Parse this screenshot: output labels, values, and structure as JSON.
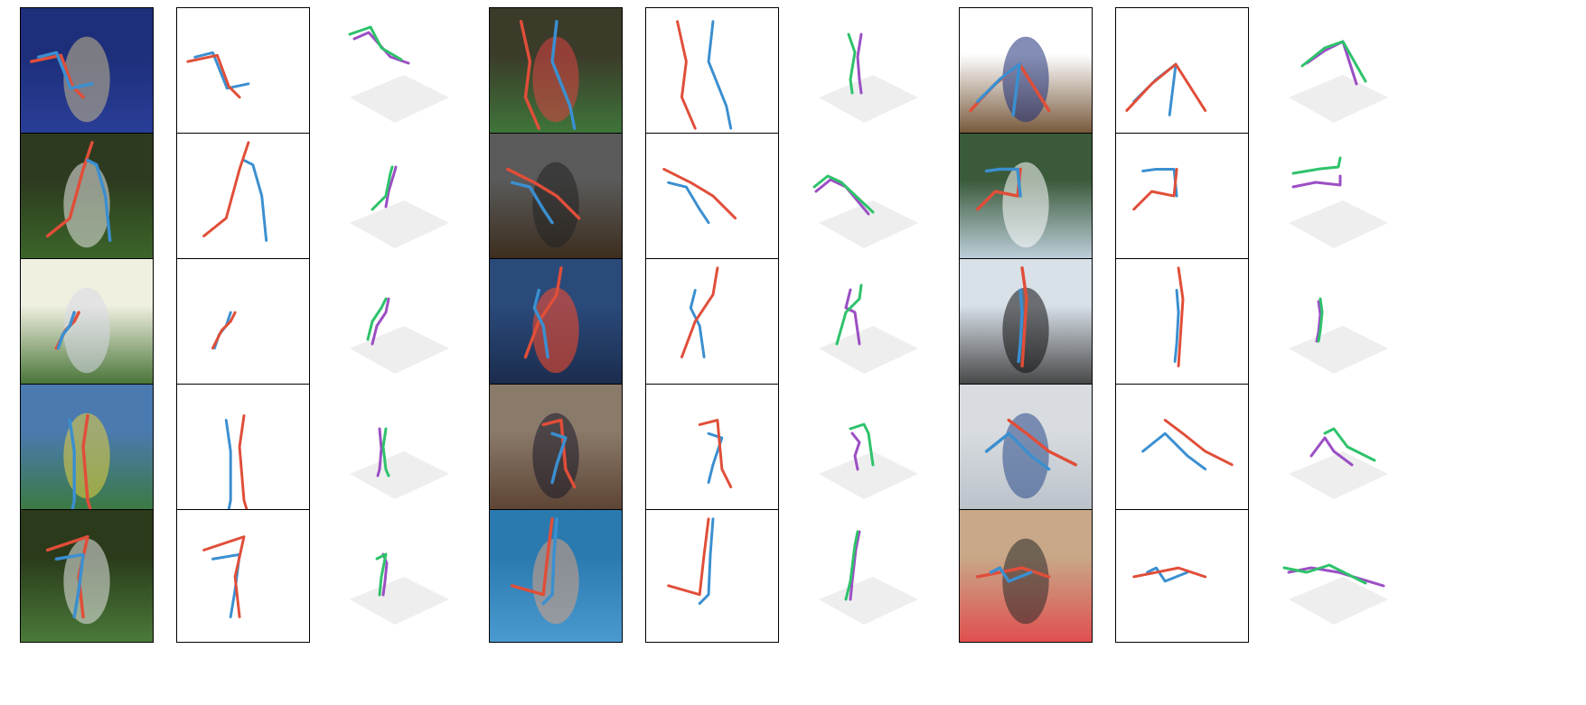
{
  "colors": {
    "right_limb": "#e04e39",
    "left_limb": "#3b8fd0",
    "left_limb_3d": "#2ec26b",
    "right_limb_3d": "#9b4fc4",
    "floor": "#eeeeee",
    "frame": "#000000"
  },
  "rows": [
    {
      "groups": [
        {
          "photo": {
            "top": "#1d2f7a",
            "bottom": "#2a3f9a",
            "accent": "#c9b98a"
          },
          "skeleton_2d": [
            [
              12,
              60,
              45,
              53,
              58,
              88,
              70,
              100
            ],
            [
              20,
              55,
              40,
              50,
              56,
              90,
              80,
              85
            ]
          ],
          "skeleton_3d": [
            [
              15,
              30,
              38,
              22,
              50,
              45,
              72,
              58
            ],
            [
              20,
              35,
              36,
              28,
              60,
              55,
              80,
              62
            ]
          ]
        },
        {
          "photo": {
            "top": "#3b3b2a",
            "bottom": "#3f7a3b",
            "accent": "#d44"
          },
          "skeleton_2d": [
            [
              35,
              15,
              45,
              60,
              40,
              100,
              55,
              135
            ],
            [
              75,
              15,
              70,
              60,
              90,
              110,
              95,
              135
            ]
          ],
          "skeleton_3d": [
            [
              48,
              30,
              55,
              50,
              50,
              80,
              52,
              95
            ],
            [
              62,
              30,
              58,
              55,
              60,
              80,
              62,
              95
            ]
          ]
        },
        {
          "photo": {
            "top": "#ffffff",
            "bottom": "#6b4a2a",
            "accent": "#1d2f7a"
          },
          "skeleton_2d": [
            [
              12,
              115,
              40,
              85,
              67,
              63,
              100,
              115
            ],
            [
              20,
              105,
              45,
              80,
              67,
              63,
              60,
              120
            ]
          ],
          "skeleton_3d": [
            [
              30,
              65,
              55,
              45,
              75,
              38,
              100,
              82
            ],
            [
              35,
              62,
              55,
              48,
              75,
              38,
              90,
              85
            ]
          ]
        }
      ]
    },
    {
      "groups": [
        {
          "photo": {
            "top": "#2d3a1f",
            "bottom": "#3d6a2a",
            "accent": "#e8e8e8"
          },
          "skeleton_2d": [
            [
              30,
              115,
              55,
              95,
              70,
              40,
              80,
              10
            ],
            [
              100,
              120,
              95,
              70,
              85,
              35,
              75,
              30
            ]
          ],
          "skeleton_3d": [
            [
              40,
              85,
              55,
              70,
              60,
              45,
              62,
              38
            ],
            [
              55,
              82,
              58,
              65,
              65,
              42,
              66,
              38
            ]
          ]
        },
        {
          "photo": {
            "top": "#5a5a5a",
            "bottom": "#3a2a1a",
            "accent": "#222"
          },
          "skeleton_2d": [
            [
              20,
              40,
              50,
              55,
              75,
              70,
              100,
              95
            ],
            [
              25,
              55,
              45,
              60,
              60,
              85,
              70,
              100
            ]
          ],
          "skeleton_3d": [
            [
              10,
              60,
              25,
              48,
              40,
              55,
              75,
              88
            ],
            [
              12,
              65,
              28,
              52,
              45,
              60,
              70,
              90
            ]
          ]
        },
        {
          "photo": {
            "top": "#3a5a3a",
            "bottom": "#c8d8e8",
            "accent": "#ffffff"
          },
          "skeleton_2d": [
            [
              20,
              85,
              40,
              65,
              65,
              70,
              68,
              40
            ],
            [
              30,
              42,
              45,
              40,
              65,
              40,
              68,
              70
            ]
          ],
          "skeleton_3d": [
            [
              20,
              45,
              50,
              40,
              70,
              38,
              72,
              28
            ],
            [
              20,
              60,
              45,
              55,
              72,
              58,
              72,
              48
            ]
          ]
        }
      ]
    },
    {
      "groups": [
        {
          "photo": {
            "top": "#f0f0e0",
            "bottom": "#3a6a2a",
            "accent": "#d8d8e8"
          },
          "skeleton_2d": [
            [
              40,
              100,
              50,
              80,
              60,
              70,
              65,
              60
            ],
            [
              42,
              100,
              47,
              85,
              55,
              75,
              60,
              60
            ]
          ],
          "skeleton_3d": [
            [
              35,
              90,
              40,
              70,
              50,
              55,
              55,
              45
            ],
            [
              40,
              95,
              45,
              75,
              55,
              60,
              58,
              45
            ]
          ]
        },
        {
          "photo": {
            "top": "#2a4a7a",
            "bottom": "#1a2a4a",
            "accent": "#ff4a2a"
          },
          "skeleton_2d": [
            [
              40,
              110,
              55,
              70,
              75,
              40,
              80,
              10
            ],
            [
              65,
              110,
              60,
              75,
              50,
              55,
              55,
              35
            ]
          ],
          "skeleton_3d": [
            [
              35,
              95,
              45,
              60,
              60,
              45,
              62,
              30
            ],
            [
              60,
              95,
              55,
              60,
              45,
              55,
              50,
              35
            ]
          ]
        },
        {
          "photo": {
            "top": "#d8e0e8",
            "bottom": "#3a3a3a",
            "accent": "#111"
          },
          "skeleton_2d": [
            [
              70,
              10,
              75,
              45,
              72,
              90,
              70,
              120
            ],
            [
              68,
              35,
              70,
              60,
              68,
              95,
              66,
              115
            ]
          ],
          "skeleton_3d": [
            [
              50,
              45,
              52,
              60,
              50,
              80,
              48,
              92
            ],
            [
              48,
              48,
              50,
              62,
              48,
              82,
              46,
              92
            ]
          ]
        }
      ]
    },
    {
      "groups": [
        {
          "photo": {
            "top": "#4a7ab0",
            "bottom": "#3a7a3a",
            "accent": "#e8d040"
          },
          "skeleton_2d": [
            [
              75,
              35,
              70,
              70,
              75,
              130,
              78,
              140
            ],
            [
              55,
              40,
              60,
              75,
              60,
              130,
              58,
              140
            ]
          ],
          "skeleton_3d": [
            [
              55,
              50,
              52,
              70,
              55,
              95,
              58,
              102
            ],
            [
              48,
              50,
              50,
              72,
              48,
              95,
              46,
              102
            ]
          ]
        },
        {
          "photo": {
            "top": "#8a7a6a",
            "bottom": "#5a4030",
            "accent": "#1a1a2a"
          },
          "skeleton_2d": [
            [
              60,
              45,
              80,
              40,
              85,
              95,
              95,
              115
            ],
            [
              70,
              55,
              85,
              60,
              75,
              90,
              70,
              110
            ]
          ],
          "skeleton_3d": [
            [
              50,
              50,
              65,
              45,
              70,
              55,
              75,
              90
            ],
            [
              52,
              55,
              60,
              65,
              55,
              80,
              58,
              95
            ]
          ]
        },
        {
          "photo": {
            "top": "#d8dce0",
            "bottom": "#b8c0c8",
            "accent": "#2a4a8a"
          },
          "skeleton_2d": [
            [
              55,
              40,
              75,
              55,
              100,
              75,
              130,
              90
            ],
            [
              30,
              75,
              55,
              55,
              80,
              80,
              100,
              95
            ]
          ],
          "skeleton_3d": [
            [
              55,
              55,
              65,
              50,
              80,
              70,
              110,
              85
            ],
            [
              40,
              80,
              55,
              60,
              65,
              75,
              85,
              90
            ]
          ]
        }
      ]
    },
    {
      "groups": [
        {
          "photo": {
            "top": "#2a3a1a",
            "bottom": "#4a7a3a",
            "accent": "#e8e8e8"
          },
          "skeleton_2d": [
            [
              30,
              45,
              75,
              30,
              65,
              75,
              70,
              120
            ],
            [
              40,
              55,
              70,
              50,
              65,
              90,
              60,
              120
            ]
          ],
          "skeleton_3d": [
            [
              45,
              55,
              55,
              50,
              50,
              75,
              48,
              95
            ],
            [
              52,
              50,
              56,
              60,
              54,
              80,
              52,
              95
            ]
          ]
        },
        {
          "photo": {
            "top": "#2a7ab0",
            "bottom": "#4a9ad0",
            "accent": "#d8a080"
          },
          "skeleton_2d": [
            [
              25,
              85,
              60,
              95,
              65,
              50,
              70,
              10
            ],
            [
              60,
              105,
              70,
              95,
              72,
              50,
              75,
              10
            ]
          ],
          "skeleton_3d": [
            [
              45,
              100,
              50,
              80,
              55,
              40,
              58,
              25
            ],
            [
              50,
              100,
              52,
              80,
              56,
              45,
              60,
              25
            ]
          ]
        },
        {
          "photo": {
            "top": "#c8a888",
            "bottom": "#e05050",
            "accent": "#2a2a2a"
          },
          "skeleton_2d": [
            [
              20,
              75,
              45,
              70,
              70,
              65,
              100,
              75
            ],
            [
              35,
              70,
              45,
              65,
              55,
              80,
              80,
              70
            ]
          ],
          "skeleton_3d": [
            [
              10,
              65,
              35,
              70,
              60,
              62,
              100,
              82
            ],
            [
              15,
              70,
              40,
              65,
              70,
              70,
              120,
              85
            ]
          ]
        }
      ]
    }
  ]
}
